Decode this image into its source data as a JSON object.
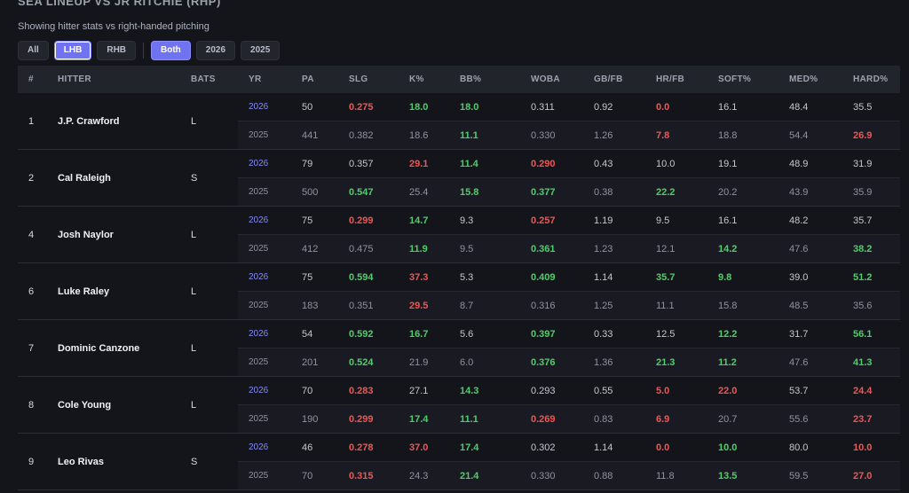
{
  "title": "SEA LINEUP VS JR RITCHIE (RHP)",
  "subtitle": "Showing hitter stats vs right-handed pitching",
  "filters": {
    "hand": [
      {
        "label": "All",
        "active": false
      },
      {
        "label": "LHB",
        "active": true
      },
      {
        "label": "RHB",
        "active": false
      }
    ],
    "year": [
      {
        "label": "Both",
        "active": true
      },
      {
        "label": "2026",
        "active": false
      },
      {
        "label": "2025",
        "active": false
      }
    ]
  },
  "colors": {
    "good": "#4ccf6a",
    "bad": "#ee5555",
    "neutral": "#c4c7d0",
    "accent": "#6f73f2"
  },
  "columns": [
    "#",
    "HITTER",
    "BATS",
    "YR",
    "PA",
    "SLG",
    "K%",
    "BB%",
    "WOBA",
    "GB/FB",
    "HR/FB",
    "SOFT%",
    "MED%",
    "HARD%"
  ],
  "players": [
    {
      "num": "1",
      "name": "J.P. Crawford",
      "bats": "L",
      "rows": [
        {
          "yr": "2026",
          "cells": [
            [
              "50",
              "n"
            ],
            [
              "0.275",
              "r"
            ],
            [
              "18.0",
              "g"
            ],
            [
              "18.0",
              "g"
            ],
            [
              "0.311",
              "n"
            ],
            [
              "0.92",
              "n"
            ],
            [
              "0.0",
              "r"
            ],
            [
              "16.1",
              "n"
            ],
            [
              "48.4",
              "n"
            ],
            [
              "35.5",
              "n"
            ]
          ]
        },
        {
          "yr": "2025",
          "cells": [
            [
              "441",
              "n"
            ],
            [
              "0.382",
              "n"
            ],
            [
              "18.6",
              "n"
            ],
            [
              "11.1",
              "g"
            ],
            [
              "0.330",
              "n"
            ],
            [
              "1.26",
              "n"
            ],
            [
              "7.8",
              "r"
            ],
            [
              "18.8",
              "n"
            ],
            [
              "54.4",
              "n"
            ],
            [
              "26.9",
              "r"
            ]
          ]
        }
      ]
    },
    {
      "num": "2",
      "name": "Cal Raleigh",
      "bats": "S",
      "rows": [
        {
          "yr": "2026",
          "cells": [
            [
              "79",
              "n"
            ],
            [
              "0.357",
              "n"
            ],
            [
              "29.1",
              "r"
            ],
            [
              "11.4",
              "g"
            ],
            [
              "0.290",
              "r"
            ],
            [
              "0.43",
              "n"
            ],
            [
              "10.0",
              "n"
            ],
            [
              "19.1",
              "n"
            ],
            [
              "48.9",
              "n"
            ],
            [
              "31.9",
              "n"
            ]
          ]
        },
        {
          "yr": "2025",
          "cells": [
            [
              "500",
              "n"
            ],
            [
              "0.547",
              "g"
            ],
            [
              "25.4",
              "n"
            ],
            [
              "15.8",
              "g"
            ],
            [
              "0.377",
              "g"
            ],
            [
              "0.38",
              "n"
            ],
            [
              "22.2",
              "g"
            ],
            [
              "20.2",
              "n"
            ],
            [
              "43.9",
              "n"
            ],
            [
              "35.9",
              "n"
            ]
          ]
        }
      ]
    },
    {
      "num": "4",
      "name": "Josh Naylor",
      "bats": "L",
      "rows": [
        {
          "yr": "2026",
          "cells": [
            [
              "75",
              "n"
            ],
            [
              "0.299",
              "r"
            ],
            [
              "14.7",
              "g"
            ],
            [
              "9.3",
              "n"
            ],
            [
              "0.257",
              "r"
            ],
            [
              "1.19",
              "n"
            ],
            [
              "9.5",
              "n"
            ],
            [
              "16.1",
              "n"
            ],
            [
              "48.2",
              "n"
            ],
            [
              "35.7",
              "n"
            ]
          ]
        },
        {
          "yr": "2025",
          "cells": [
            [
              "412",
              "n"
            ],
            [
              "0.475",
              "n"
            ],
            [
              "11.9",
              "g"
            ],
            [
              "9.5",
              "n"
            ],
            [
              "0.361",
              "g"
            ],
            [
              "1.23",
              "n"
            ],
            [
              "12.1",
              "n"
            ],
            [
              "14.2",
              "g"
            ],
            [
              "47.6",
              "n"
            ],
            [
              "38.2",
              "g"
            ]
          ]
        }
      ]
    },
    {
      "num": "6",
      "name": "Luke Raley",
      "bats": "L",
      "rows": [
        {
          "yr": "2026",
          "cells": [
            [
              "75",
              "n"
            ],
            [
              "0.594",
              "g"
            ],
            [
              "37.3",
              "r"
            ],
            [
              "5.3",
              "n"
            ],
            [
              "0.409",
              "g"
            ],
            [
              "1.14",
              "n"
            ],
            [
              "35.7",
              "g"
            ],
            [
              "9.8",
              "g"
            ],
            [
              "39.0",
              "n"
            ],
            [
              "51.2",
              "g"
            ]
          ]
        },
        {
          "yr": "2025",
          "cells": [
            [
              "183",
              "n"
            ],
            [
              "0.351",
              "n"
            ],
            [
              "29.5",
              "r"
            ],
            [
              "8.7",
              "n"
            ],
            [
              "0.316",
              "n"
            ],
            [
              "1.25",
              "n"
            ],
            [
              "11.1",
              "n"
            ],
            [
              "15.8",
              "n"
            ],
            [
              "48.5",
              "n"
            ],
            [
              "35.6",
              "n"
            ]
          ]
        }
      ]
    },
    {
      "num": "7",
      "name": "Dominic Canzone",
      "bats": "L",
      "rows": [
        {
          "yr": "2026",
          "cells": [
            [
              "54",
              "n"
            ],
            [
              "0.592",
              "g"
            ],
            [
              "16.7",
              "g"
            ],
            [
              "5.6",
              "n"
            ],
            [
              "0.397",
              "g"
            ],
            [
              "0.33",
              "n"
            ],
            [
              "12.5",
              "n"
            ],
            [
              "12.2",
              "g"
            ],
            [
              "31.7",
              "n"
            ],
            [
              "56.1",
              "g"
            ]
          ]
        },
        {
          "yr": "2025",
          "cells": [
            [
              "201",
              "n"
            ],
            [
              "0.524",
              "g"
            ],
            [
              "21.9",
              "n"
            ],
            [
              "6.0",
              "n"
            ],
            [
              "0.376",
              "g"
            ],
            [
              "1.36",
              "n"
            ],
            [
              "21.3",
              "g"
            ],
            [
              "11.2",
              "g"
            ],
            [
              "47.6",
              "n"
            ],
            [
              "41.3",
              "g"
            ]
          ]
        }
      ]
    },
    {
      "num": "8",
      "name": "Cole Young",
      "bats": "L",
      "rows": [
        {
          "yr": "2026",
          "cells": [
            [
              "70",
              "n"
            ],
            [
              "0.283",
              "r"
            ],
            [
              "27.1",
              "n"
            ],
            [
              "14.3",
              "g"
            ],
            [
              "0.293",
              "n"
            ],
            [
              "0.55",
              "n"
            ],
            [
              "5.0",
              "r"
            ],
            [
              "22.0",
              "r"
            ],
            [
              "53.7",
              "n"
            ],
            [
              "24.4",
              "r"
            ]
          ]
        },
        {
          "yr": "2025",
          "cells": [
            [
              "190",
              "n"
            ],
            [
              "0.299",
              "r"
            ],
            [
              "17.4",
              "g"
            ],
            [
              "11.1",
              "g"
            ],
            [
              "0.269",
              "r"
            ],
            [
              "0.83",
              "n"
            ],
            [
              "6.9",
              "r"
            ],
            [
              "20.7",
              "n"
            ],
            [
              "55.6",
              "n"
            ],
            [
              "23.7",
              "r"
            ]
          ]
        }
      ]
    },
    {
      "num": "9",
      "name": "Leo Rivas",
      "bats": "S",
      "rows": [
        {
          "yr": "2026",
          "cells": [
            [
              "46",
              "n"
            ],
            [
              "0.278",
              "r"
            ],
            [
              "37.0",
              "r"
            ],
            [
              "17.4",
              "g"
            ],
            [
              "0.302",
              "n"
            ],
            [
              "1.14",
              "n"
            ],
            [
              "0.0",
              "r"
            ],
            [
              "10.0",
              "g"
            ],
            [
              "80.0",
              "n"
            ],
            [
              "10.0",
              "r"
            ]
          ]
        },
        {
          "yr": "2025",
          "cells": [
            [
              "70",
              "n"
            ],
            [
              "0.315",
              "r"
            ],
            [
              "24.3",
              "n"
            ],
            [
              "21.4",
              "g"
            ],
            [
              "0.330",
              "n"
            ],
            [
              "0.88",
              "n"
            ],
            [
              "11.8",
              "n"
            ],
            [
              "13.5",
              "g"
            ],
            [
              "59.5",
              "n"
            ],
            [
              "27.0",
              "r"
            ]
          ]
        }
      ]
    }
  ]
}
